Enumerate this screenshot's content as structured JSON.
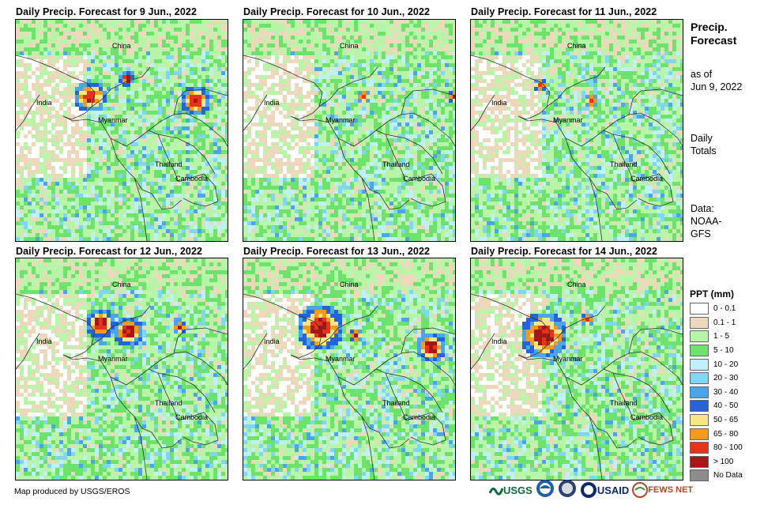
{
  "panels": [
    {
      "title": "Daily Precip. Forecast for 9 Jun., 2022",
      "seed": 11
    },
    {
      "title": "Daily Precip. Forecast for 10 Jun., 2022",
      "seed": 23
    },
    {
      "title": "Daily Precip. Forecast for 11 Jun., 2022",
      "seed": 37
    },
    {
      "title": "Daily Precip. Forecast for 12 Jun., 2022",
      "seed": 41
    },
    {
      "title": "Daily Precip. Forecast for 13 Jun., 2022",
      "seed": 53
    },
    {
      "title": "Daily Precip. Forecast for 14 Jun., 2022",
      "seed": 67
    }
  ],
  "place_labels": {
    "china": "China",
    "india": "India",
    "myanmar": "Myanmar",
    "thailand": "Thailand",
    "cambodia": "Cambodia"
  },
  "side": {
    "title_line1": "Precip.",
    "title_line2": "Forecast",
    "asof_line1": "as of",
    "asof_line2": "Jun 9, 2022",
    "totals_line1": "Daily",
    "totals_line2": "Totals",
    "data_line1": "Data:",
    "data_line2": "NOAA-",
    "data_line3": "GFS"
  },
  "legend": {
    "title": "PPT (mm)",
    "classes": [
      {
        "label": "0 - 0.1",
        "color": "#ffffff"
      },
      {
        "label": "0.1 - 1",
        "color": "#eed8bb"
      },
      {
        "label": "1 - 5",
        "color": "#b8f5a8"
      },
      {
        "label": "5 - 10",
        "color": "#6de36b"
      },
      {
        "label": "10 - 20",
        "color": "#bff0fb"
      },
      {
        "label": "20 - 30",
        "color": "#80d7f3"
      },
      {
        "label": "30 - 40",
        "color": "#4aa5ec"
      },
      {
        "label": "40 - 50",
        "color": "#2463d8"
      },
      {
        "label": "50 - 65",
        "color": "#fbe687"
      },
      {
        "label": "65 - 80",
        "color": "#f49a1a"
      },
      {
        "label": "80 - 100",
        "color": "#e8321c"
      },
      {
        "label": "> 100",
        "color": "#a11818"
      },
      {
        "label": "No Data",
        "color": "#8c8c8c"
      }
    ]
  },
  "credit": "Map produced by USGS/EROS",
  "logos": {
    "usgs": "USGS",
    "usaid": "USAID",
    "fewsnet": "FEWS NET"
  }
}
